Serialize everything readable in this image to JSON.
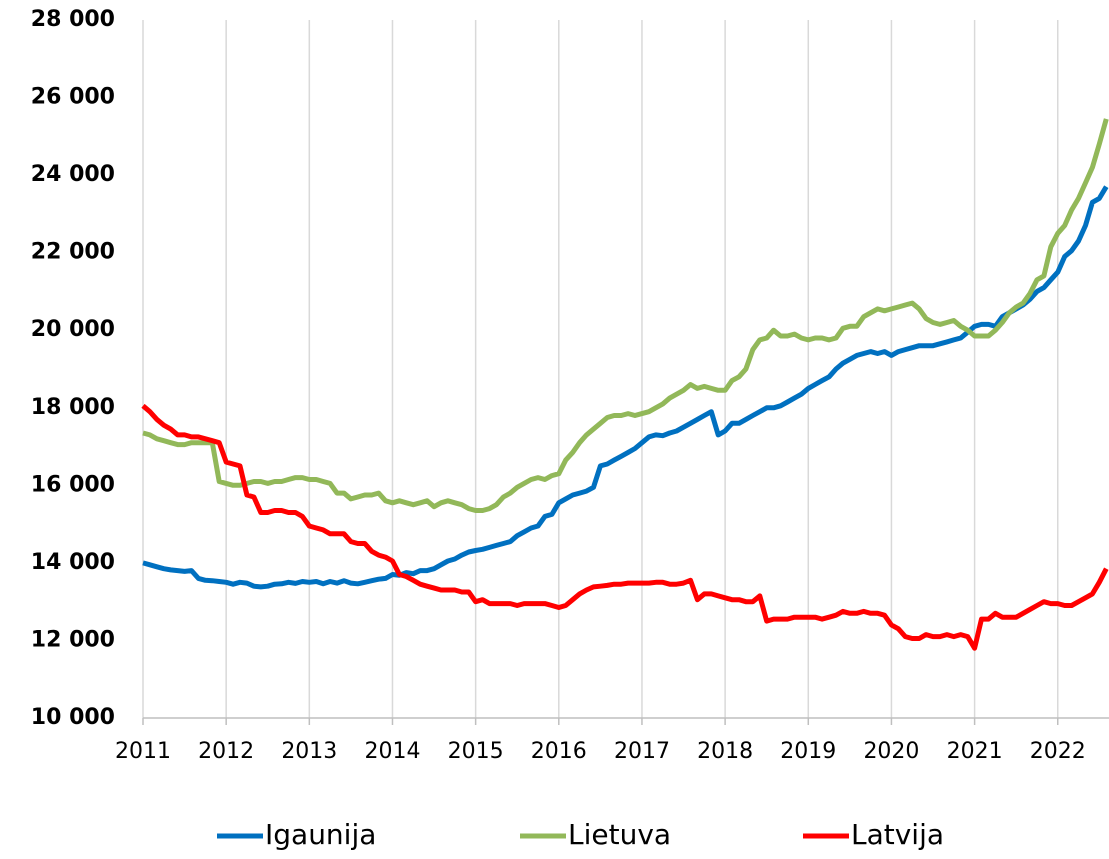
{
  "chart_data": {
    "type": "line",
    "categories": [
      "2011",
      null,
      null,
      null,
      null,
      null,
      null,
      null,
      null,
      null,
      null,
      null,
      "2012",
      null,
      null,
      null,
      null,
      null,
      null,
      null,
      null,
      null,
      null,
      null,
      "2013",
      null,
      null,
      null,
      null,
      null,
      null,
      null,
      null,
      null,
      null,
      null,
      "2014",
      null,
      null,
      null,
      null,
      null,
      null,
      null,
      null,
      null,
      null,
      null,
      "2015",
      null,
      null,
      null,
      null,
      null,
      null,
      null,
      null,
      null,
      null,
      null,
      "2016",
      null,
      null,
      null,
      null,
      null,
      null,
      null,
      null,
      null,
      null,
      null,
      "2017",
      null,
      null,
      null,
      null,
      null,
      null,
      null,
      null,
      null,
      null,
      null,
      "2018",
      null,
      null,
      null,
      null,
      null,
      null,
      null,
      null,
      null,
      null,
      null,
      "2019",
      null,
      null,
      null,
      null,
      null,
      null,
      null,
      null,
      null,
      null,
      null,
      "2020",
      null,
      null,
      null,
      null,
      null,
      null,
      null,
      null,
      null,
      null,
      null,
      "2021",
      null,
      null,
      null,
      null,
      null,
      null,
      null,
      null,
      null,
      null,
      null,
      "2022",
      null,
      null,
      null,
      null,
      null,
      null,
      null
    ],
    "series": [
      {
        "name": "Igaunija",
        "color": "#0070c0",
        "values": [
          14000,
          13950,
          13900,
          13850,
          13820,
          13800,
          13780,
          13800,
          13600,
          13550,
          13540,
          13520,
          13500,
          13450,
          13500,
          13480,
          13400,
          13380,
          13400,
          13450,
          13460,
          13500,
          13470,
          13520,
          13500,
          13520,
          13460,
          13520,
          13480,
          13540,
          13480,
          13460,
          13500,
          13540,
          13580,
          13600,
          13700,
          13680,
          13750,
          13720,
          13800,
          13800,
          13850,
          13950,
          14050,
          14100,
          14200,
          14280,
          14320,
          14350,
          14400,
          14450,
          14500,
          14550,
          14700,
          14800,
          14900,
          14950,
          15200,
          15250,
          15550,
          15650,
          15750,
          15800,
          15850,
          15950,
          16500,
          16550,
          16650,
          16750,
          16850,
          16950,
          17100,
          17250,
          17300,
          17280,
          17350,
          17400,
          17500,
          17600,
          17700,
          17800,
          17900,
          17300,
          17400,
          17600,
          17600,
          17700,
          17800,
          17900,
          18000,
          18000,
          18050,
          18150,
          18250,
          18350,
          18500,
          18600,
          18700,
          18800,
          19000,
          19150,
          19250,
          19350,
          19400,
          19450,
          19400,
          19450,
          19350,
          19450,
          19500,
          19550,
          19600,
          19600,
          19600,
          19650,
          19700,
          19750,
          19800,
          19950,
          20100,
          20150,
          20150,
          20100,
          20350,
          20450,
          20550,
          20650,
          20800,
          21000,
          21100,
          21300,
          21500,
          21900,
          22050,
          22300,
          22700,
          23300,
          23400,
          23700
        ]
      },
      {
        "name": "Lietuva",
        "color": "#92b859",
        "values": [
          17350,
          17300,
          17200,
          17150,
          17100,
          17050,
          17050,
          17100,
          17100,
          17100,
          17100,
          16100,
          16050,
          16000,
          16000,
          16050,
          16100,
          16100,
          16050,
          16100,
          16100,
          16150,
          16200,
          16200,
          16150,
          16150,
          16100,
          16050,
          15800,
          15800,
          15650,
          15700,
          15750,
          15750,
          15800,
          15600,
          15550,
          15600,
          15550,
          15500,
          15550,
          15600,
          15450,
          15550,
          15600,
          15550,
          15500,
          15400,
          15350,
          15350,
          15400,
          15500,
          15700,
          15800,
          15950,
          16050,
          16150,
          16200,
          16150,
          16250,
          16300,
          16650,
          16850,
          17100,
          17300,
          17450,
          17600,
          17750,
          17800,
          17800,
          17850,
          17800,
          17850,
          17900,
          18000,
          18100,
          18250,
          18350,
          18450,
          18600,
          18500,
          18550,
          18500,
          18450,
          18450,
          18700,
          18800,
          19000,
          19500,
          19750,
          19800,
          20000,
          19850,
          19850,
          19900,
          19800,
          19750,
          19800,
          19800,
          19750,
          19800,
          20050,
          20100,
          20100,
          20350,
          20450,
          20550,
          20500,
          20550,
          20600,
          20650,
          20700,
          20550,
          20300,
          20200,
          20150,
          20200,
          20250,
          20100,
          20000,
          19850,
          19850,
          19850,
          20000,
          20200,
          20450,
          20600,
          20700,
          20950,
          21300,
          21400,
          22150,
          22500,
          22700,
          23100,
          23400,
          23800,
          24200,
          24800,
          25450
        ]
      },
      {
        "name": "Latvija",
        "color": "#ff0000",
        "values": [
          18050,
          17900,
          17700,
          17550,
          17450,
          17300,
          17300,
          17250,
          17250,
          17200,
          17150,
          17100,
          16600,
          16550,
          16500,
          15750,
          15700,
          15300,
          15300,
          15350,
          15350,
          15300,
          15300,
          15200,
          14950,
          14900,
          14850,
          14750,
          14750,
          14750,
          14550,
          14500,
          14500,
          14300,
          14200,
          14150,
          14050,
          13700,
          13650,
          13550,
          13450,
          13400,
          13350,
          13300,
          13300,
          13300,
          13250,
          13250,
          13000,
          13050,
          12950,
          12950,
          12950,
          12950,
          12900,
          12950,
          12950,
          12950,
          12950,
          12900,
          12850,
          12900,
          13050,
          13200,
          13300,
          13380,
          13400,
          13420,
          13450,
          13450,
          13480,
          13480,
          13480,
          13480,
          13500,
          13500,
          13450,
          13450,
          13480,
          13550,
          13050,
          13200,
          13200,
          13150,
          13100,
          13050,
          13050,
          13000,
          13000,
          13150,
          12500,
          12550,
          12550,
          12550,
          12600,
          12600,
          12600,
          12600,
          12550,
          12600,
          12650,
          12750,
          12700,
          12700,
          12750,
          12700,
          12700,
          12650,
          12400,
          12300,
          12100,
          12050,
          12050,
          12150,
          12100,
          12100,
          12150,
          12100,
          12150,
          12100,
          11800,
          12550,
          12550,
          12700,
          12600,
          12600,
          12600,
          12700,
          12800,
          12900,
          13000,
          12950,
          12950,
          12900,
          12900,
          13000,
          13100,
          13200,
          13500,
          13850
        ]
      }
    ],
    "ylim": [
      10000,
      28000
    ],
    "yticks": [
      {
        "value": 10000,
        "label": "10 000"
      },
      {
        "value": 12000,
        "label": "12 000"
      },
      {
        "value": 14000,
        "label": "14 000"
      },
      {
        "value": 16000,
        "label": "16 000"
      },
      {
        "value": 18000,
        "label": "18 000"
      },
      {
        "value": 20000,
        "label": "20 000"
      },
      {
        "value": 22000,
        "label": "22 000"
      },
      {
        "value": 24000,
        "label": "24 000"
      },
      {
        "value": 26000,
        "label": "26 000"
      },
      {
        "value": 28000,
        "label": "28 000"
      }
    ],
    "grid": "x",
    "legend": "bottom"
  }
}
